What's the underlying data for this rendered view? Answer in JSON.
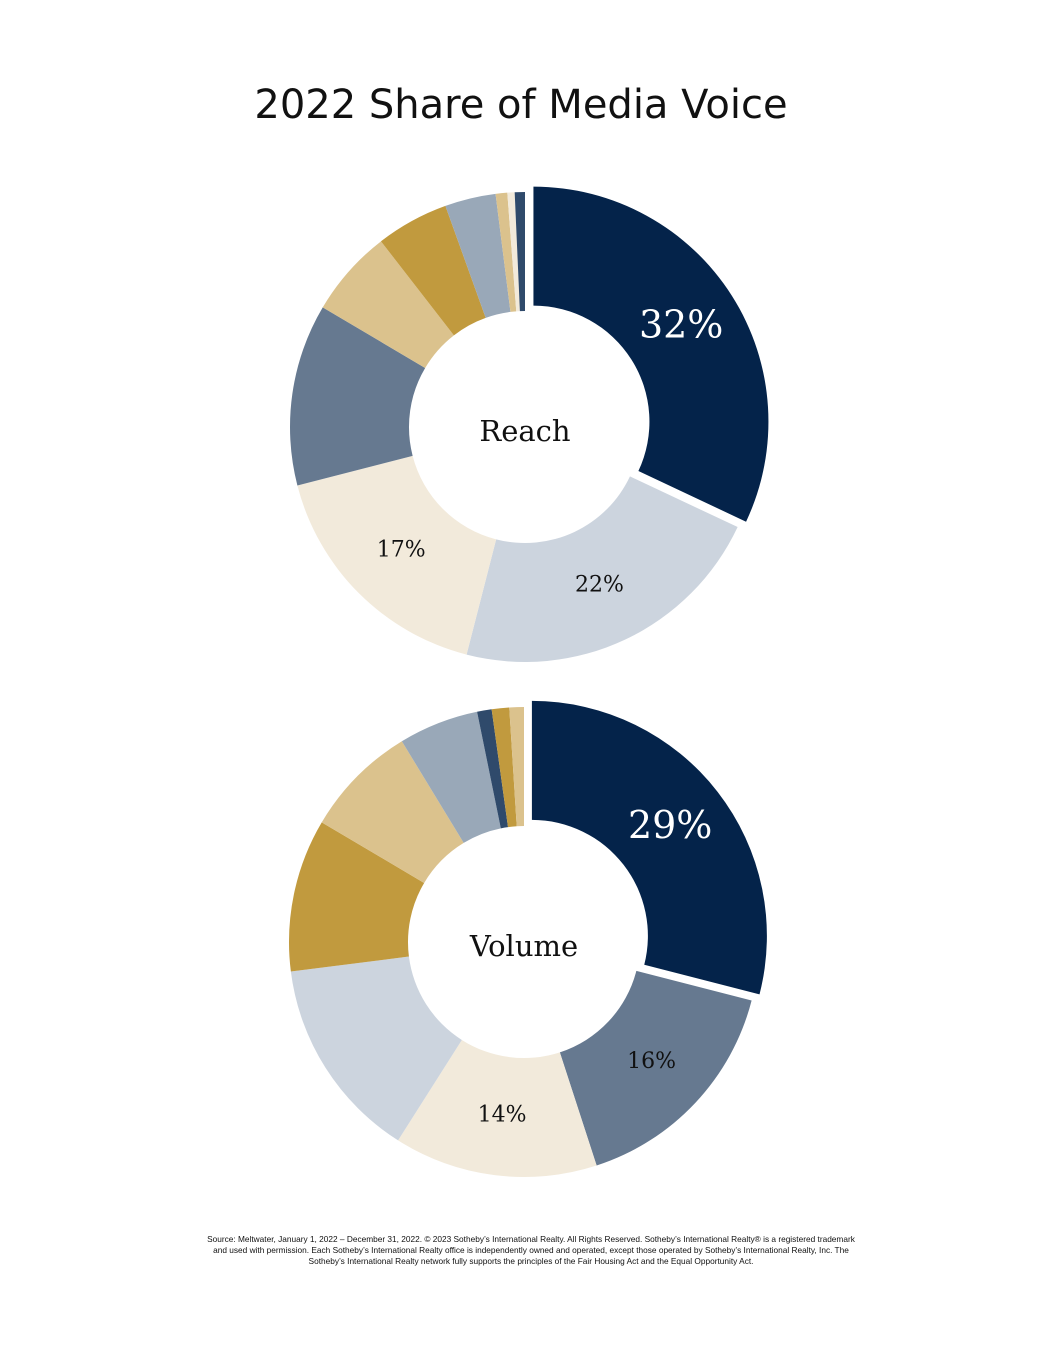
{
  "title": "2022 Share of Media Voice",
  "colors": {
    "navy": "#04234a",
    "slate": "#667990",
    "silver": "#ccd4de",
    "cream": "#f2eadb",
    "gold": "#c19a3e",
    "sand": "#dbc28d",
    "steel": "#99a8b8",
    "navy_mid": "#2f4a6b"
  },
  "chart_data": [
    {
      "type": "pie",
      "title": "Reach",
      "slices": [
        {
          "value": 32,
          "label": "32%",
          "color": "#04234a",
          "label_color": "#ffffff",
          "label_size": "large",
          "exploded": true
        },
        {
          "value": 22,
          "label": "22%",
          "color": "#ccd4de",
          "label_color": "#111111",
          "label_size": "small"
        },
        {
          "value": 17,
          "label": "17%",
          "color": "#f2eadb",
          "label_color": "#111111",
          "label_size": "small"
        },
        {
          "value": 12.5,
          "label": "",
          "color": "#667990"
        },
        {
          "value": 6,
          "label": "",
          "color": "#dbc28d"
        },
        {
          "value": 5,
          "label": "",
          "color": "#c19a3e"
        },
        {
          "value": 3.5,
          "label": "",
          "color": "#99a8b8"
        },
        {
          "value": 0.8,
          "label": "",
          "color": "#dbc28d"
        },
        {
          "value": 0.5,
          "label": "",
          "color": "#f2eadb"
        },
        {
          "value": 0.7,
          "label": "",
          "color": "#2f4a6b"
        }
      ]
    },
    {
      "type": "pie",
      "title": "Volume",
      "slices": [
        {
          "value": 29,
          "label": "29%",
          "color": "#04234a",
          "label_color": "#ffffff",
          "label_size": "large",
          "exploded": true
        },
        {
          "value": 16,
          "label": "16%",
          "color": "#667990",
          "label_color": "#111111",
          "label_size": "small"
        },
        {
          "value": 14,
          "label": "14%",
          "color": "#f2eadb",
          "label_color": "#111111",
          "label_size": "small"
        },
        {
          "value": 14,
          "label": "",
          "color": "#ccd4de"
        },
        {
          "value": 10.5,
          "label": "",
          "color": "#c19a3e"
        },
        {
          "value": 7.8,
          "label": "",
          "color": "#dbc28d"
        },
        {
          "value": 5.5,
          "label": "",
          "color": "#99a8b8"
        },
        {
          "value": 1,
          "label": "",
          "color": "#2f4a6b"
        },
        {
          "value": 1.2,
          "label": "",
          "color": "#c19a3e"
        },
        {
          "value": 1,
          "label": "",
          "color": "#dbc28d"
        }
      ]
    }
  ],
  "footnote": "Source: Meltwater, January 1, 2022 – December 31, 2022. © 2023 Sotheby’s International Realty. All Rights Reserved. Sotheby’s International Realty® is a registered trademark and used with permission. Each Sotheby’s International Realty office is independently owned and operated, except those operated by Sotheby’s International Realty, Inc. The Sotheby’s International Realty network fully supports the principles of the Fair Housing Act and the Equal Opportunity Act."
}
